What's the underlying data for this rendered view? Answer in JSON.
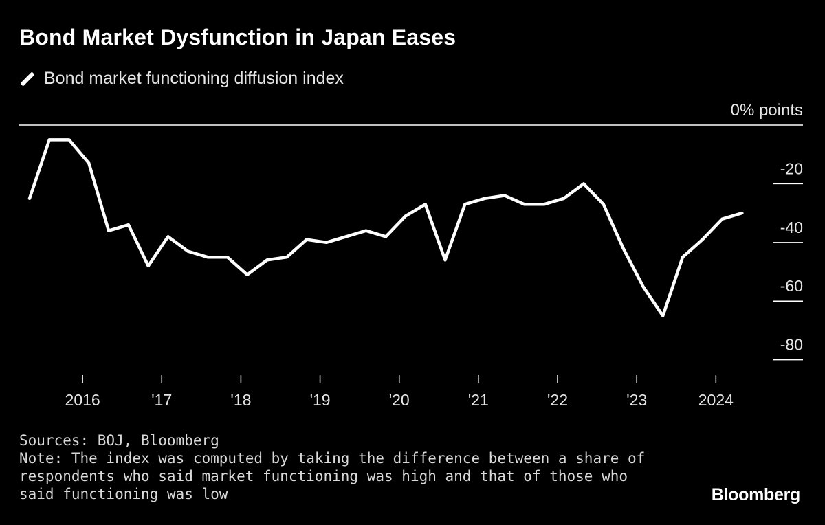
{
  "chart_data": {
    "type": "line",
    "title": "Bond Market Dysfunction in Japan Eases",
    "series": [
      {
        "name": "Bond market functioning diffusion index",
        "color": "#ffffff",
        "x": [
          2015.33,
          2015.58,
          2015.83,
          2016.08,
          2016.33,
          2016.58,
          2016.83,
          2017.08,
          2017.33,
          2017.58,
          2017.83,
          2018.08,
          2018.33,
          2018.58,
          2018.83,
          2019.08,
          2019.33,
          2019.58,
          2019.83,
          2020.08,
          2020.33,
          2020.58,
          2020.83,
          2021.08,
          2021.33,
          2021.58,
          2021.83,
          2022.08,
          2022.33,
          2022.58,
          2022.83,
          2023.08,
          2023.33,
          2023.58,
          2023.83,
          2024.08,
          2024.33
        ],
        "values": [
          -25,
          -5,
          -5,
          -13,
          -36,
          -34,
          -48,
          -38,
          -43,
          -45,
          -45,
          -51,
          -46,
          -45,
          -39,
          -40,
          -38,
          -36,
          -38,
          -31,
          -27,
          -46,
          -27,
          -25,
          -24,
          -27,
          -27,
          -25,
          -20,
          -27,
          -42,
          -55,
          -65,
          -45,
          -39,
          -32,
          -30
        ]
      }
    ],
    "ylim": [
      -85,
      0
    ],
    "yticks": [
      -80,
      -60,
      -40,
      -20
    ],
    "ytick_labels": [
      "-80",
      "-60",
      "-40",
      "-20"
    ],
    "y_top_label": "0% points",
    "xlim": [
      2015.2,
      2025.1
    ],
    "xticks": [
      2016,
      2017,
      2018,
      2019,
      2020,
      2021,
      2022,
      2023,
      2024
    ],
    "xtick_labels": [
      "2016",
      "'17",
      "'18",
      "'19",
      "'20",
      "'21",
      "'22",
      "'23",
      "2024"
    ],
    "grid": false,
    "legend_position": "top-left"
  },
  "footer": {
    "sources": "Sources: BOJ, Bloomberg",
    "note": "Note: The index was computed by taking the difference between a share of respondents who said market functioning was high and that of those who said functioning was low"
  },
  "brand": "Bloomberg"
}
